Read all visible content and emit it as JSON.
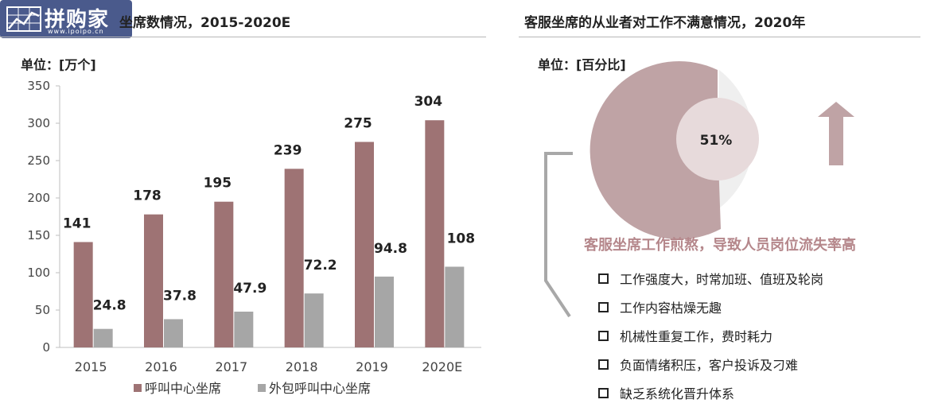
{
  "logo": {
    "text": "拼购家",
    "sub": "www.ipoipo.cn"
  },
  "left_panel": {
    "title": "坐席数情况，2015-2020E",
    "unit": "单位：[万个]"
  },
  "right_panel": {
    "title": "客服坐席的从业者对工作不满意情况，2020年",
    "unit": "单位：[百分比]",
    "pie_label": "51%",
    "subhead": "客服坐席工作煎熬，导致人员岗位流失率高",
    "bullets": [
      "工作强度大，时常加班、值班及轮岗",
      "工作内容枯燥无趣",
      "机械性重复工作，费时耗力",
      "负面情绪积压，客户投诉及刁难",
      "缺乏系统化晋升体系"
    ]
  },
  "chart_data": [
    {
      "type": "bar",
      "title": "坐席数情况，2015-2020E",
      "ylabel": "单位：[万个]",
      "xlabel": "",
      "categories": [
        "2015",
        "2016",
        "2017",
        "2018",
        "2019",
        "2020E"
      ],
      "series": [
        {
          "name": "呼叫中心坐席",
          "values": [
            141,
            178,
            195,
            239,
            275,
            304
          ],
          "color": "#9e7374"
        },
        {
          "name": "外包呼叫中心坐席",
          "values": [
            24.8,
            37.8,
            47.9,
            72.2,
            94.8,
            108
          ],
          "color": "#a6a6a6"
        }
      ],
      "yticks": [
        0,
        50,
        100,
        150,
        200,
        250,
        300,
        350
      ],
      "ylim": [
        0,
        350
      ],
      "legend": "bottom",
      "grid": false
    },
    {
      "type": "pie",
      "title": "客服坐席的从业者对工作不满意情况，2020年",
      "slices": [
        {
          "label": "51%",
          "value": 51,
          "color": "#bfa3a5"
        },
        {
          "label": "",
          "value": 49,
          "color": "#efefef"
        }
      ],
      "center_color": "#e7dadb"
    }
  ]
}
